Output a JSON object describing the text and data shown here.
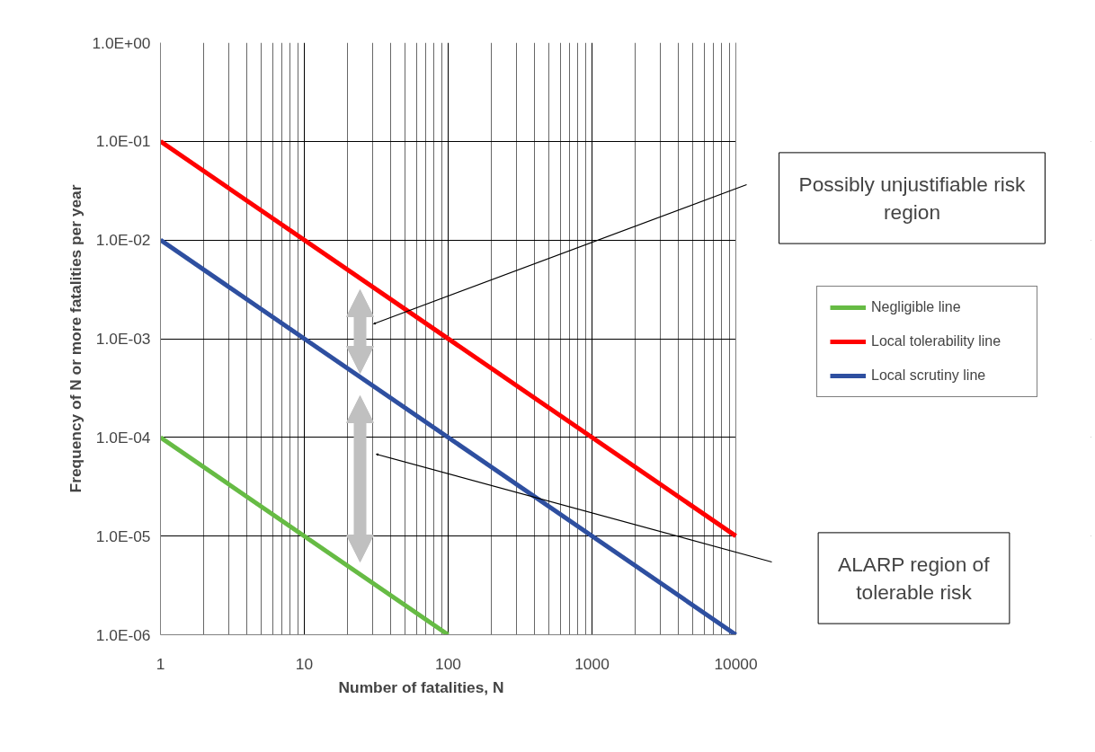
{
  "chart_data": {
    "type": "line",
    "xlabel": "Number of fatalities, N",
    "ylabel": "Frequency of N or more fatalities per year",
    "log": "xy",
    "xlim": [
      1,
      10000
    ],
    "ylim": [
      1e-06,
      1
    ],
    "xticks": [
      1,
      10,
      100,
      1000,
      10000
    ],
    "yticks": [
      {
        "value": 1e-06,
        "label": "1.0E-06"
      },
      {
        "value": 1e-05,
        "label": "1.0E-05"
      },
      {
        "value": 0.0001,
        "label": "1.0E-04"
      },
      {
        "value": 0.001,
        "label": "1.0E-03"
      },
      {
        "value": 0.01,
        "label": "1.0E-02"
      },
      {
        "value": 0.1,
        "label": "1.0E-01"
      },
      {
        "value": 1,
        "label": "1.0E+00"
      }
    ],
    "grid": true,
    "legend": "right",
    "marker": "none",
    "line_style": "solid",
    "series": [
      {
        "name": "Negligible line",
        "color": "#66bb44",
        "x": [
          1,
          100
        ],
        "values": [
          0.0001,
          1e-06
        ]
      },
      {
        "name": "Local tolerability line",
        "color": "#ff0000",
        "x": [
          1,
          10000
        ],
        "values": [
          0.1,
          1e-05
        ]
      },
      {
        "name": "Local scrutiny line",
        "color": "#2e4fa0",
        "x": [
          1,
          10000
        ],
        "values": [
          0.01,
          1e-06
        ]
      }
    ],
    "annotations": [
      "Possibly unjustifiable risk\nregion",
      "ALARP region of\ntolerable risk"
    ]
  }
}
